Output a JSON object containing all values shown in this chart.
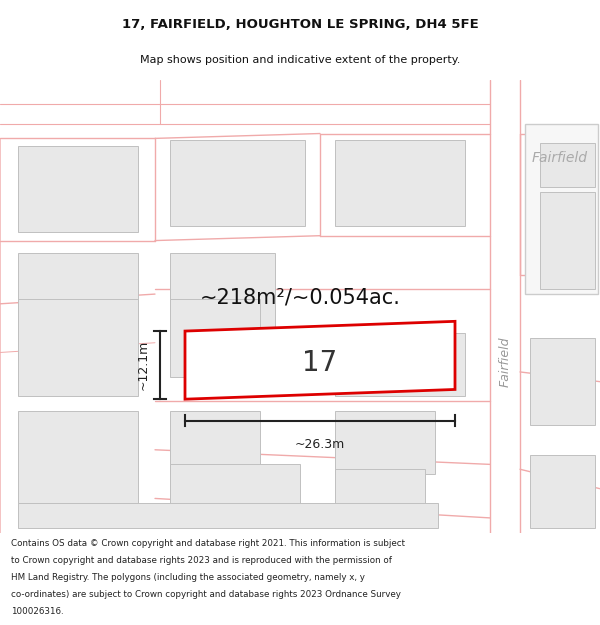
{
  "title_line1": "17, FAIRFIELD, HOUGHTON LE SPRING, DH4 5FE",
  "title_line2": "Map shows position and indicative extent of the property.",
  "footer_lines": [
    "Contains OS data © Crown copyright and database right 2021. This information is subject",
    "to Crown copyright and database rights 2023 and is reproduced with the permission of",
    "HM Land Registry. The polygons (including the associated geometry, namely x, y",
    "co-ordinates) are subject to Crown copyright and database rights 2023 Ordnance Survey",
    "100026316."
  ],
  "area_text": "~218m²/~0.054ac.",
  "plot_number": "17",
  "dim_width": "~26.3m",
  "dim_height": "~12.1m",
  "map_bg": "#f7f7f7",
  "block_fill": "#e8e8e8",
  "block_edge": "#c0c0c0",
  "road_line_color": "#f0aaaa",
  "plot_fill": "#ffffff",
  "plot_edge": "#dd0000",
  "dim_color": "#222222",
  "area_color": "#111111",
  "label_color": "#aaaaaa",
  "road_label_color": "#999999",
  "fairfield_label": "Fairfield",
  "road_label": "Fairfield"
}
